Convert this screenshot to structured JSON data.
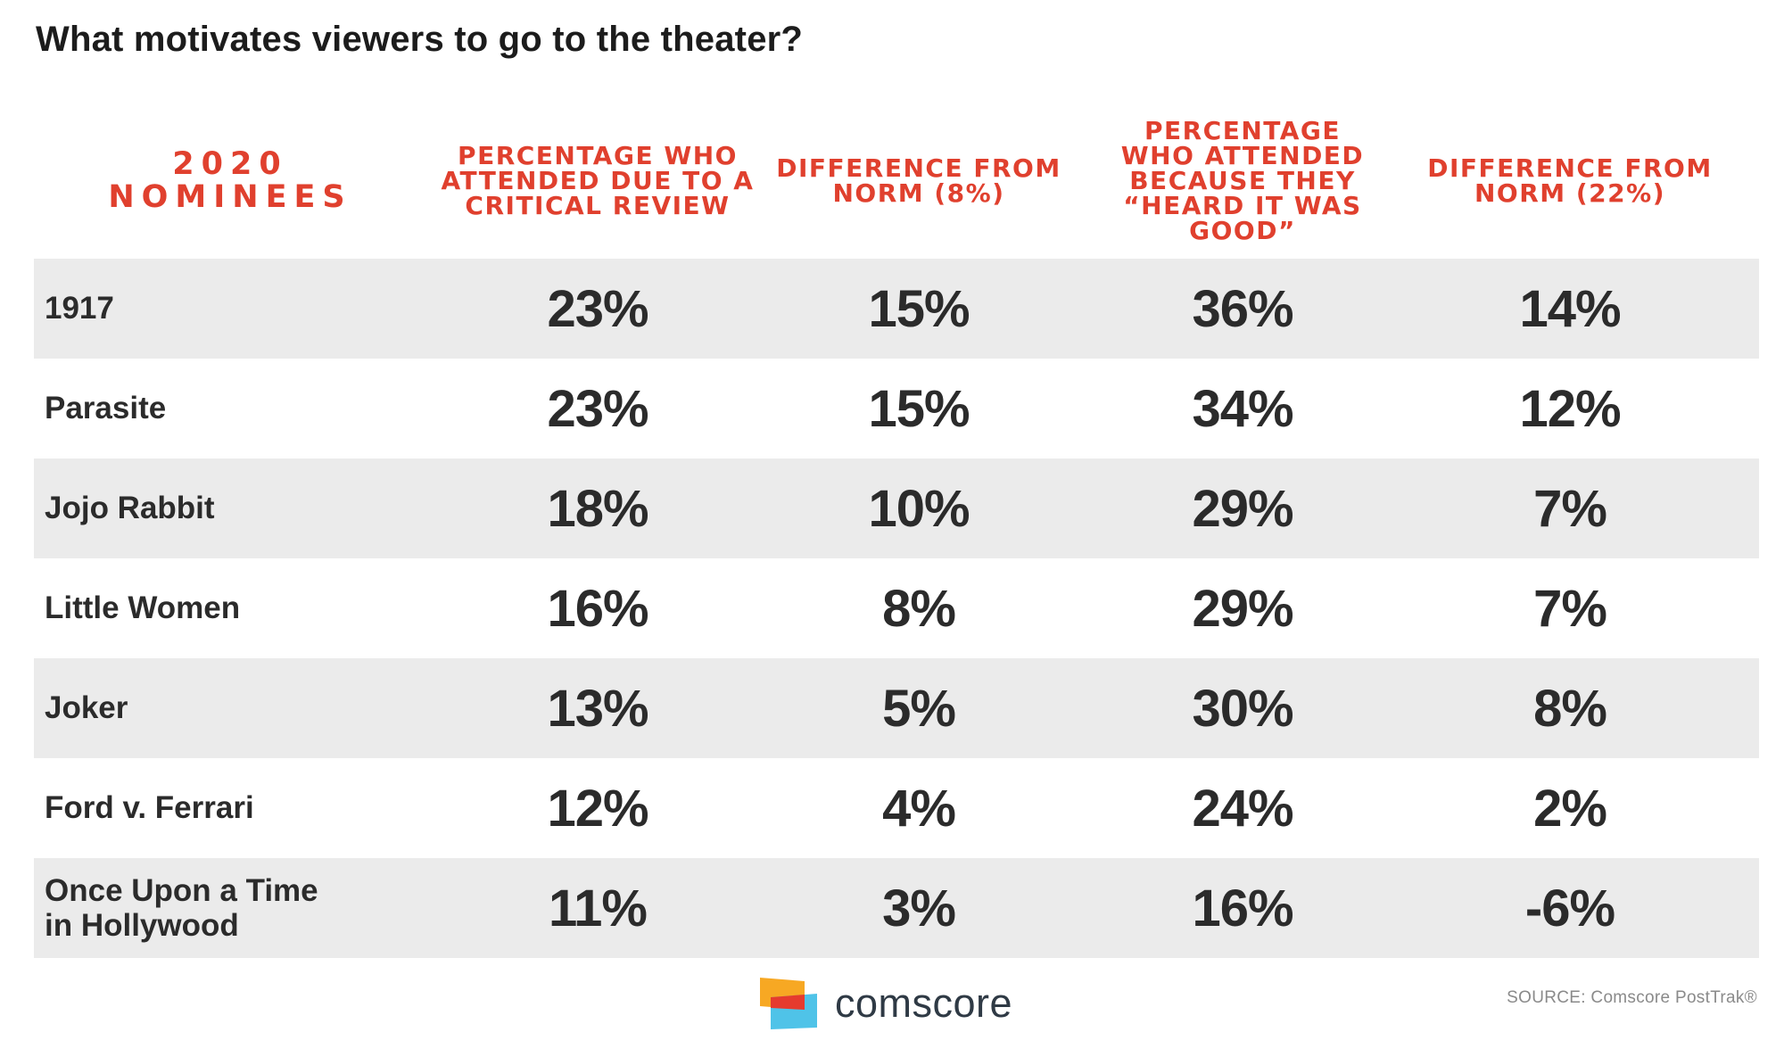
{
  "title": "What motivates viewers to go to the theater?",
  "chart_data": {
    "type": "table",
    "title": "What motivates viewers to go to the theater?",
    "columns": [
      {
        "lines": [
          "2020",
          "NOMINEES"
        ]
      },
      {
        "lines": [
          "PERCENTAGE WHO",
          "ATTENDED DUE TO A",
          "CRITICAL REVIEW"
        ]
      },
      {
        "lines": [
          "DIFFERENCE FROM",
          "NORM (8%)"
        ]
      },
      {
        "lines": [
          "PERCENTAGE",
          "WHO ATTENDED",
          "BECAUSE THEY",
          "“HEARD IT WAS",
          "GOOD”"
        ]
      },
      {
        "lines": [
          "DIFFERENCE FROM",
          "NORM (22%)"
        ]
      }
    ],
    "rows": [
      {
        "name_lines": [
          "1917"
        ],
        "values": [
          "23%",
          "15%",
          "36%",
          "14%"
        ]
      },
      {
        "name_lines": [
          "Parasite"
        ],
        "values": [
          "23%",
          "15%",
          "34%",
          "12%"
        ]
      },
      {
        "name_lines": [
          "Jojo Rabbit"
        ],
        "values": [
          "18%",
          "10%",
          "29%",
          "7%"
        ]
      },
      {
        "name_lines": [
          "Little Women"
        ],
        "values": [
          "16%",
          "8%",
          "29%",
          "7%"
        ]
      },
      {
        "name_lines": [
          "Joker"
        ],
        "values": [
          "13%",
          "5%",
          "30%",
          "8%"
        ]
      },
      {
        "name_lines": [
          "Ford v. Ferrari"
        ],
        "values": [
          "12%",
          "4%",
          "24%",
          "2%"
        ]
      },
      {
        "name_lines": [
          "Once Upon a Time",
          "in Hollywood"
        ],
        "values": [
          "11%",
          "3%",
          "16%",
          "-6%"
        ]
      }
    ]
  },
  "footer": {
    "brand": "comscore",
    "source": "SOURCE: Comscore PostTrak®",
    "logo_colors": {
      "orange": "#f7a823",
      "red": "#e63b2e",
      "blue": "#4fc3e8"
    }
  },
  "colors": {
    "header": "#e0402e",
    "text": "#2b2b2b",
    "shade": "#ebebeb"
  }
}
